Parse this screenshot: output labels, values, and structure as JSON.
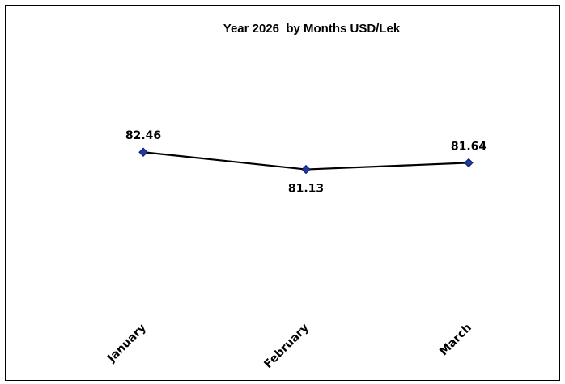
{
  "chart_data": {
    "type": "line",
    "title": "Year 2026  by Months USD/Lek",
    "categories": [
      "January",
      "February",
      "March"
    ],
    "series": [
      {
        "values": [
          82.46,
          81.13,
          81.64
        ]
      }
    ],
    "data_labels": [
      "82.46",
      "81.13",
      "81.64"
    ],
    "data_label_positions": [
      "above",
      "below",
      "above"
    ],
    "ylim": [
      70.6,
      89.8
    ],
    "grid": false,
    "legend": "none",
    "colors": {
      "line": "#000000",
      "marker_fill": "#1f3aa6",
      "marker_stroke": "#0a1a6b",
      "plot_border": "#000000",
      "frame_border": "#000000"
    },
    "marker": "diamond"
  }
}
